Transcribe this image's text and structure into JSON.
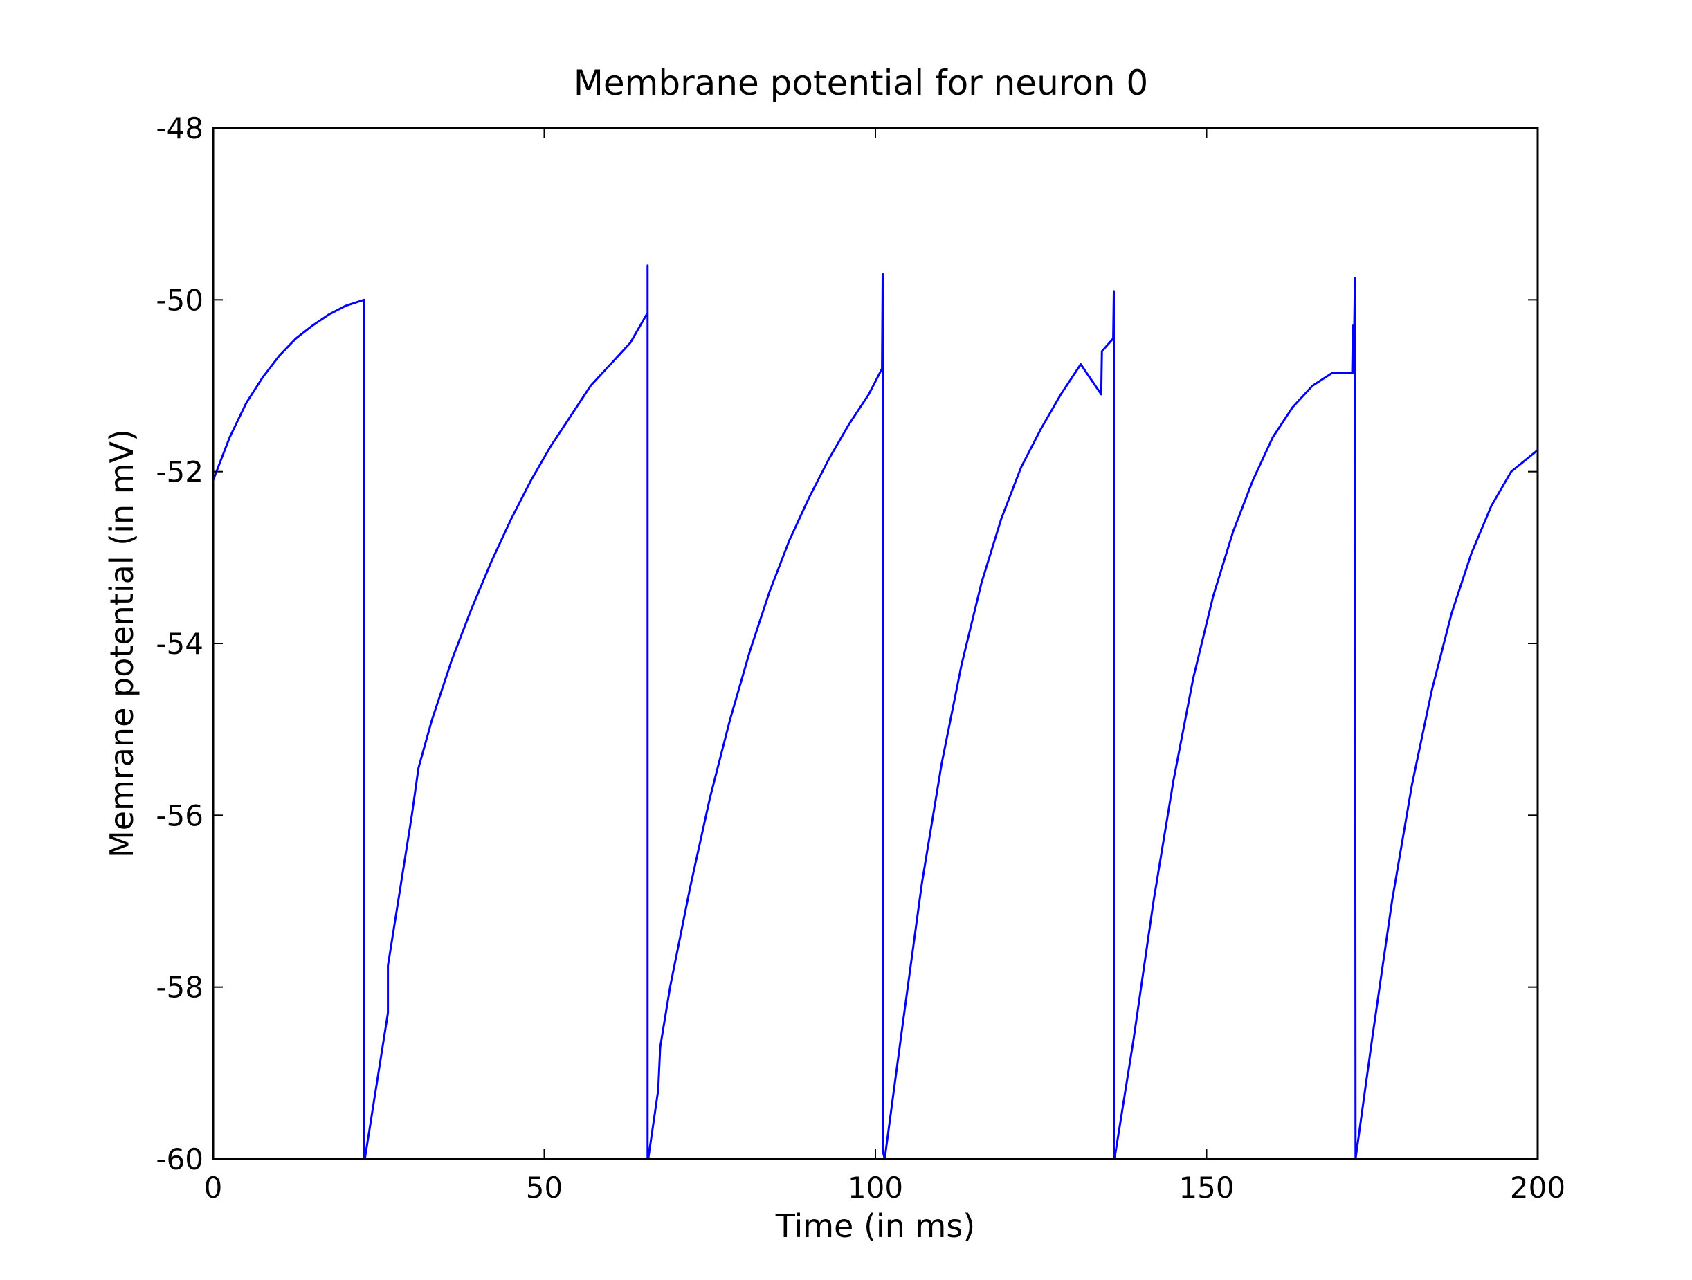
{
  "chart_data": {
    "type": "line",
    "title": "Membrane potential for neuron 0",
    "xlabel": "Time (in ms)",
    "ylabel": "Memrane potential (in mV)",
    "xlim": [
      0,
      200
    ],
    "ylim": [
      -60,
      -48
    ],
    "xticks": [
      0,
      50,
      100,
      150,
      200
    ],
    "xtick_labels": [
      "0",
      "50",
      "100",
      "150",
      "200"
    ],
    "yticks": [
      -60,
      -58,
      -56,
      -54,
      -52,
      -50,
      -48
    ],
    "ytick_labels": [
      "-60",
      "-58",
      "-56",
      "-54",
      "-52",
      "-50",
      "-48"
    ],
    "grid": false,
    "series": [
      {
        "color": "#0000ff",
        "x": [
          0,
          2.5,
          5,
          7.5,
          10,
          12.5,
          15,
          17.5,
          20,
          22.8,
          22.8,
          22.9,
          26.4,
          26.4,
          30.0,
          31.0,
          31.0,
          33,
          36,
          39,
          42,
          45,
          48,
          51,
          54,
          57,
          60,
          63,
          65.6,
          65.6,
          65.6,
          65.7,
          67.2,
          67.5,
          69,
          72,
          75,
          78,
          81,
          84,
          87,
          90,
          93,
          96,
          99,
          101.0,
          101.1,
          101.1,
          101.4,
          104,
          107,
          110,
          113,
          116,
          119,
          122,
          125,
          128,
          131,
          134.1,
          134.2,
          135.9,
          136.0,
          136.0,
          136.1,
          139,
          142,
          145,
          148,
          151,
          154,
          157,
          160,
          163,
          166,
          169,
          172.0,
          172.1,
          172.2,
          172.4,
          172.5,
          175,
          178,
          181,
          184,
          187,
          190,
          193,
          196,
          200
        ],
        "y": [
          -52.1,
          -51.6,
          -51.2,
          -50.9,
          -50.65,
          -50.45,
          -50.3,
          -50.17,
          -50.07,
          -50.0,
          -60.0,
          -60.0,
          -58.3,
          -57.75,
          -56.0,
          -55.45,
          -55.45,
          -54.9,
          -54.2,
          -53.6,
          -53.05,
          -52.55,
          -52.1,
          -51.7,
          -51.35,
          -51.0,
          -50.75,
          -50.5,
          -50.15,
          -49.6,
          -60.0,
          -60.0,
          -59.2,
          -58.7,
          -58.0,
          -56.85,
          -55.8,
          -54.9,
          -54.1,
          -53.4,
          -52.8,
          -52.3,
          -51.85,
          -51.45,
          -51.1,
          -50.8,
          -49.7,
          -59.9,
          -60.0,
          -58.5,
          -56.8,
          -55.4,
          -54.25,
          -53.3,
          -52.55,
          -51.95,
          -51.5,
          -51.1,
          -50.75,
          -51.1,
          -50.6,
          -50.45,
          -49.9,
          -60.0,
          -60.0,
          -58.6,
          -57.0,
          -55.6,
          -54.4,
          -53.45,
          -52.7,
          -52.1,
          -51.6,
          -51.25,
          -51.0,
          -50.85,
          -50.85,
          -50.3,
          -50.85,
          -49.75,
          -60.0,
          -58.6,
          -57.0,
          -55.65,
          -54.55,
          -53.65,
          -52.95,
          -52.4,
          -52.0,
          -51.75
        ]
      }
    ]
  }
}
